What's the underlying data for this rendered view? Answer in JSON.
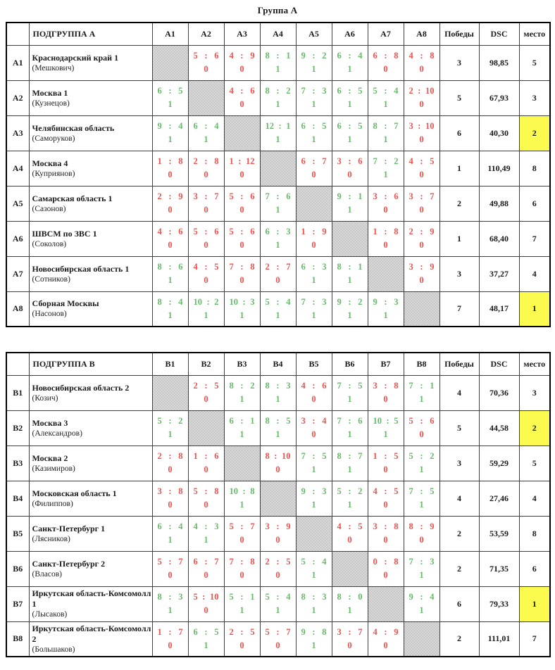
{
  "title": "Группа А",
  "colors": {
    "win": "#66bb6a",
    "loss": "#ef5350",
    "highlight": "#fbfb4f"
  },
  "columns": {
    "wins": "Победы",
    "dsc": "DSC",
    "place": "место"
  },
  "groups": [
    {
      "name": "ПОДГРУППА А",
      "codes": [
        "A1",
        "A2",
        "A3",
        "A4",
        "A5",
        "A6",
        "A7",
        "A8"
      ],
      "rows": [
        {
          "code": "A1",
          "team": "Краснодарский край 1",
          "captain": "(Мешкович)",
          "highlight": false,
          "wins": "3",
          "dsc": "98,85",
          "place": "5",
          "cells": [
            null,
            {
              "s": [
                "5",
                "6"
              ],
              "w": 0
            },
            {
              "s": [
                "4",
                "9"
              ],
              "w": 0
            },
            {
              "s": [
                "8",
                "1"
              ],
              "w": 1
            },
            {
              "s": [
                "9",
                "2"
              ],
              "w": 1
            },
            {
              "s": [
                "6",
                "4"
              ],
              "w": 1
            },
            {
              "s": [
                "6",
                "8"
              ],
              "w": 0
            },
            {
              "s": [
                "4",
                "8"
              ],
              "w": 0
            }
          ]
        },
        {
          "code": "A2",
          "team": "Москва 1",
          "captain": "(Кузнецов)",
          "highlight": false,
          "wins": "5",
          "dsc": "67,93",
          "place": "3",
          "cells": [
            {
              "s": [
                "6",
                "5"
              ],
              "w": 1
            },
            null,
            {
              "s": [
                "4",
                "6"
              ],
              "w": 0
            },
            {
              "s": [
                "8",
                "2"
              ],
              "w": 1
            },
            {
              "s": [
                "7",
                "3"
              ],
              "w": 1
            },
            {
              "s": [
                "6",
                "5"
              ],
              "w": 1
            },
            {
              "s": [
                "5",
                "4"
              ],
              "w": 1
            },
            {
              "s": [
                "2",
                "10"
              ],
              "w": 0
            }
          ]
        },
        {
          "code": "A3",
          "team": "Челябинская область",
          "captain": "(Саморуков)",
          "highlight": true,
          "wins": "6",
          "dsc": "40,30",
          "place": "2",
          "cells": [
            {
              "s": [
                "9",
                "4"
              ],
              "w": 1
            },
            {
              "s": [
                "6",
                "4"
              ],
              "w": 1
            },
            null,
            {
              "s": [
                "12",
                "1"
              ],
              "w": 1
            },
            {
              "s": [
                "6",
                "5"
              ],
              "w": 1
            },
            {
              "s": [
                "6",
                "5"
              ],
              "w": 1
            },
            {
              "s": [
                "8",
                "7"
              ],
              "w": 1
            },
            {
              "s": [
                "3",
                "10"
              ],
              "w": 0
            }
          ]
        },
        {
          "code": "A4",
          "team": "Москва 4",
          "captain": "(Куприянов)",
          "highlight": false,
          "wins": "1",
          "dsc": "110,49",
          "place": "8",
          "cells": [
            {
              "s": [
                "1",
                "8"
              ],
              "w": 0
            },
            {
              "s": [
                "2",
                "8"
              ],
              "w": 0
            },
            {
              "s": [
                "1",
                "12"
              ],
              "w": 0
            },
            null,
            {
              "s": [
                "6",
                "7"
              ],
              "w": 0
            },
            {
              "s": [
                "3",
                "6"
              ],
              "w": 0
            },
            {
              "s": [
                "7",
                "2"
              ],
              "w": 1
            },
            {
              "s": [
                "4",
                "5"
              ],
              "w": 0
            }
          ]
        },
        {
          "code": "A5",
          "team": "Самарская область 1",
          "captain": "(Сазонов)",
          "highlight": false,
          "wins": "2",
          "dsc": "49,88",
          "place": "6",
          "cells": [
            {
              "s": [
                "2",
                "9"
              ],
              "w": 0
            },
            {
              "s": [
                "3",
                "7"
              ],
              "w": 0
            },
            {
              "s": [
                "5",
                "6"
              ],
              "w": 0
            },
            {
              "s": [
                "7",
                "6"
              ],
              "w": 1
            },
            null,
            {
              "s": [
                "9",
                "1"
              ],
              "w": 1
            },
            {
              "s": [
                "3",
                "6"
              ],
              "w": 0
            },
            {
              "s": [
                "3",
                "7"
              ],
              "w": 0
            }
          ]
        },
        {
          "code": "A6",
          "team": "ШВСМ по ЗВС 1",
          "captain": "(Соколов)",
          "highlight": false,
          "wins": "1",
          "dsc": "68,40",
          "place": "7",
          "cells": [
            {
              "s": [
                "4",
                "6"
              ],
              "w": 0
            },
            {
              "s": [
                "5",
                "6"
              ],
              "w": 0
            },
            {
              "s": [
                "5",
                "6"
              ],
              "w": 0
            },
            {
              "s": [
                "6",
                "3"
              ],
              "w": 1
            },
            {
              "s": [
                "1",
                "9"
              ],
              "w": 0
            },
            null,
            {
              "s": [
                "1",
                "8"
              ],
              "w": 0
            },
            {
              "s": [
                "2",
                "9"
              ],
              "w": 0
            }
          ]
        },
        {
          "code": "A7",
          "team": "Новосибирская область 1",
          "captain": "(Сотников)",
          "highlight": false,
          "wins": "3",
          "dsc": "37,27",
          "place": "4",
          "cells": [
            {
              "s": [
                "8",
                "6"
              ],
              "w": 1
            },
            {
              "s": [
                "4",
                "5"
              ],
              "w": 0
            },
            {
              "s": [
                "7",
                "8"
              ],
              "w": 0
            },
            {
              "s": [
                "2",
                "7"
              ],
              "w": 0
            },
            {
              "s": [
                "6",
                "3"
              ],
              "w": 1
            },
            {
              "s": [
                "8",
                "1"
              ],
              "w": 1
            },
            null,
            {
              "s": [
                "3",
                "9"
              ],
              "w": 0
            }
          ]
        },
        {
          "code": "A8",
          "team": "Сборная Москвы",
          "captain": "(Насонов)",
          "highlight": true,
          "wins": "7",
          "dsc": "48,17",
          "place": "1",
          "cells": [
            {
              "s": [
                "8",
                "4"
              ],
              "w": 1
            },
            {
              "s": [
                "10",
                "2"
              ],
              "w": 1
            },
            {
              "s": [
                "10",
                "3"
              ],
              "w": 1
            },
            {
              "s": [
                "5",
                "4"
              ],
              "w": 1
            },
            {
              "s": [
                "7",
                "3"
              ],
              "w": 1
            },
            {
              "s": [
                "9",
                "2"
              ],
              "w": 1
            },
            {
              "s": [
                "9",
                "3"
              ],
              "w": 1
            },
            null
          ]
        }
      ]
    },
    {
      "name": "ПОДГРУППА В",
      "codes": [
        "B1",
        "B2",
        "B3",
        "B4",
        "B5",
        "B6",
        "B7",
        "B8"
      ],
      "rows": [
        {
          "code": "B1",
          "team": "Новосибирская область 2",
          "captain": "(Козич)",
          "highlight": false,
          "wins": "4",
          "dsc": "70,36",
          "place": "3",
          "cells": [
            null,
            {
              "s": [
                "2",
                "5"
              ],
              "w": 0
            },
            {
              "s": [
                "8",
                "2"
              ],
              "w": 1
            },
            {
              "s": [
                "8",
                "3"
              ],
              "w": 1
            },
            {
              "s": [
                "4",
                "6"
              ],
              "w": 0
            },
            {
              "s": [
                "7",
                "5"
              ],
              "w": 1
            },
            {
              "s": [
                "3",
                "8"
              ],
              "w": 0
            },
            {
              "s": [
                "7",
                "1"
              ],
              "w": 1
            }
          ]
        },
        {
          "code": "B2",
          "team": "Москва 3",
          "captain": "(Александров)",
          "highlight": true,
          "wins": "5",
          "dsc": "44,58",
          "place": "2",
          "cells": [
            {
              "s": [
                "5",
                "2"
              ],
              "w": 1
            },
            null,
            {
              "s": [
                "6",
                "1"
              ],
              "w": 1
            },
            {
              "s": [
                "8",
                "5"
              ],
              "w": 1
            },
            {
              "s": [
                "3",
                "4"
              ],
              "w": 0
            },
            {
              "s": [
                "7",
                "6"
              ],
              "w": 1
            },
            {
              "s": [
                "10",
                "5"
              ],
              "w": 1
            },
            {
              "s": [
                "5",
                "6"
              ],
              "w": 0
            }
          ]
        },
        {
          "code": "B3",
          "team": "Москва 2",
          "captain": "(Казимиров)",
          "highlight": false,
          "wins": "3",
          "dsc": "59,29",
          "place": "5",
          "cells": [
            {
              "s": [
                "2",
                "8"
              ],
              "w": 0
            },
            {
              "s": [
                "1",
                "6"
              ],
              "w": 0
            },
            null,
            {
              "s": [
                "8",
                "10"
              ],
              "w": 0
            },
            {
              "s": [
                "7",
                "5"
              ],
              "w": 1
            },
            {
              "s": [
                "8",
                "7"
              ],
              "w": 1
            },
            {
              "s": [
                "1",
                "5"
              ],
              "w": 0
            },
            {
              "s": [
                "5",
                "2"
              ],
              "w": 1
            }
          ]
        },
        {
          "code": "B4",
          "team": "Московская область 1",
          "captain": "(Филиппов)",
          "highlight": false,
          "wins": "4",
          "dsc": "27,46",
          "place": "4",
          "cells": [
            {
              "s": [
                "3",
                "8"
              ],
              "w": 0
            },
            {
              "s": [
                "5",
                "8"
              ],
              "w": 0
            },
            {
              "s": [
                "10",
                "8"
              ],
              "w": 1
            },
            null,
            {
              "s": [
                "9",
                "3"
              ],
              "w": 1
            },
            {
              "s": [
                "5",
                "2"
              ],
              "w": 1
            },
            {
              "s": [
                "4",
                "5"
              ],
              "w": 0
            },
            {
              "s": [
                "7",
                "5"
              ],
              "w": 1
            }
          ]
        },
        {
          "code": "B5",
          "team": "Санкт-Петербург 1",
          "captain": "(Лясников)",
          "highlight": false,
          "wins": "2",
          "dsc": "53,59",
          "place": "8",
          "cells": [
            {
              "s": [
                "6",
                "4"
              ],
              "w": 1
            },
            {
              "s": [
                "4",
                "3"
              ],
              "w": 1
            },
            {
              "s": [
                "5",
                "7"
              ],
              "w": 0
            },
            {
              "s": [
                "3",
                "9"
              ],
              "w": 0
            },
            null,
            {
              "s": [
                "4",
                "5"
              ],
              "w": 0
            },
            {
              "s": [
                "3",
                "8"
              ],
              "w": 0
            },
            {
              "s": [
                "8",
                "9"
              ],
              "w": 0
            }
          ]
        },
        {
          "code": "B6",
          "team": "Санкт-Петербург 2",
          "captain": "(Власов)",
          "highlight": false,
          "wins": "2",
          "dsc": "71,35",
          "place": "6",
          "cells": [
            {
              "s": [
                "5",
                "7"
              ],
              "w": 0
            },
            {
              "s": [
                "6",
                "7"
              ],
              "w": 0
            },
            {
              "s": [
                "7",
                "8"
              ],
              "w": 0
            },
            {
              "s": [
                "2",
                "5"
              ],
              "w": 0
            },
            {
              "s": [
                "5",
                "4"
              ],
              "w": 1
            },
            null,
            {
              "s": [
                "0",
                "8"
              ],
              "w": 0
            },
            {
              "s": [
                "7",
                "3"
              ],
              "w": 1
            }
          ]
        },
        {
          "code": "B7",
          "team": "Иркутская область-Комсомолл 1",
          "captain": "(Лысаков)",
          "highlight": true,
          "wins": "6",
          "dsc": "79,33",
          "place": "1",
          "cells": [
            {
              "s": [
                "8",
                "3"
              ],
              "w": 1
            },
            {
              "s": [
                "5",
                "10"
              ],
              "w": 0
            },
            {
              "s": [
                "5",
                "1"
              ],
              "w": 1
            },
            {
              "s": [
                "5",
                "4"
              ],
              "w": 1
            },
            {
              "s": [
                "8",
                "3"
              ],
              "w": 1
            },
            {
              "s": [
                "8",
                "0"
              ],
              "w": 1
            },
            null,
            {
              "s": [
                "9",
                "4"
              ],
              "w": 1
            }
          ]
        },
        {
          "code": "B8",
          "team": "Иркутская область-Комсомолл 2",
          "captain": "(Большаков)",
          "highlight": false,
          "wins": "2",
          "dsc": "111,01",
          "place": "7",
          "cells": [
            {
              "s": [
                "1",
                "7"
              ],
              "w": 0
            },
            {
              "s": [
                "6",
                "5"
              ],
              "w": 1
            },
            {
              "s": [
                "2",
                "5"
              ],
              "w": 0
            },
            {
              "s": [
                "5",
                "7"
              ],
              "w": 0
            },
            {
              "s": [
                "9",
                "8"
              ],
              "w": 1
            },
            {
              "s": [
                "3",
                "7"
              ],
              "w": 0
            },
            {
              "s": [
                "4",
                "9"
              ],
              "w": 0
            },
            null
          ]
        }
      ]
    }
  ]
}
